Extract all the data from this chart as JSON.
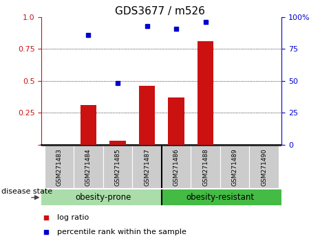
{
  "title": "GDS3677 / m526",
  "samples": [
    "GSM271483",
    "GSM271484",
    "GSM271485",
    "GSM271487",
    "GSM271486",
    "GSM271488",
    "GSM271489",
    "GSM271490"
  ],
  "log_ratio": [
    0.0,
    0.31,
    0.03,
    0.46,
    0.37,
    0.81,
    0.0,
    0.0
  ],
  "percentile_rank": [
    null,
    0.86,
    0.48,
    0.93,
    0.91,
    0.96,
    null,
    null
  ],
  "bar_color": "#cc1111",
  "dot_color": "#0000cc",
  "left_axis_color": "#cc1111",
  "right_axis_color": "#0000cc",
  "ylim": [
    0,
    1.0
  ],
  "yticks_left": [
    0,
    0.25,
    0.5,
    0.75,
    1.0
  ],
  "yticks_right": [
    0,
    25,
    50,
    75,
    100
  ],
  "xticklabel_bg": "#cccccc",
  "group_prone_color": "#aaddaa",
  "group_resistant_color": "#44bb44",
  "legend_items": [
    "log ratio",
    "percentile rank within the sample"
  ],
  "disease_state_label": "disease state",
  "title_fontsize": 11,
  "tick_fontsize": 8,
  "label_fontsize": 8,
  "group_fontsize": 8.5
}
